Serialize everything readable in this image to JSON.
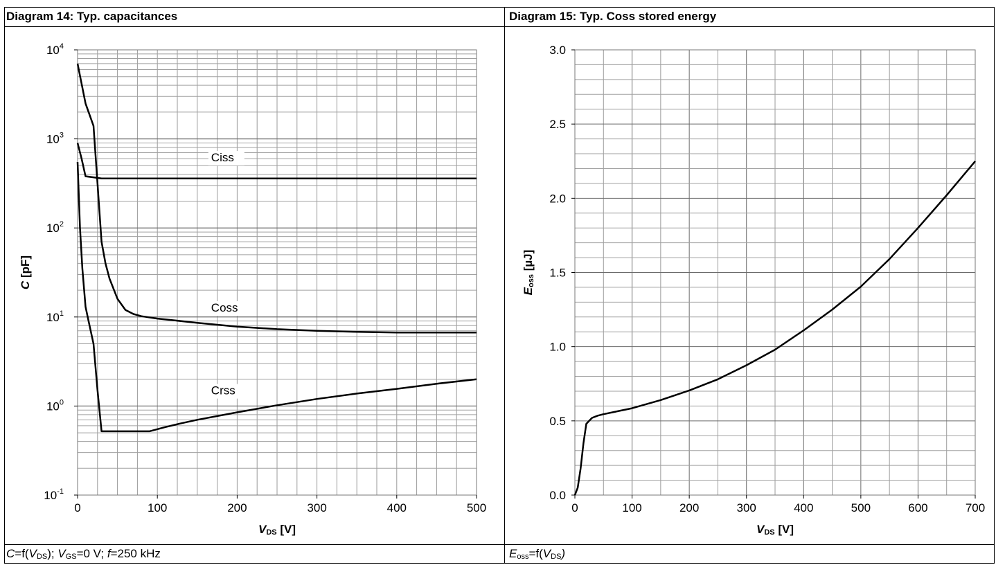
{
  "panels": [
    {
      "title": "Diagram 14: Typ. capacitances",
      "caption": {
        "v1": "C",
        "t1": "=f(",
        "v2": "V",
        "s2": "DS",
        "t2": "); ",
        "v3": "V",
        "s3": "GS",
        "t3": "=0 V; ",
        "v4": "f",
        "t4": "=250 kHz"
      }
    },
    {
      "title": "Diagram 15: Typ. Coss stored energy",
      "caption": {
        "v1": "E",
        "s1": "oss",
        "t1": "=f(",
        "v2": "V",
        "s2": "DS",
        "t2": ")"
      }
    }
  ],
  "chart_data": [
    {
      "type": "line",
      "title": "Diagram 14: Typ. capacitances",
      "xlabel": {
        "main": "V",
        "sub": "DS",
        "rest": " [V]"
      },
      "ylabel": {
        "main": "C",
        "sub": "",
        "rest": " [pF]"
      },
      "xlim": [
        0,
        500
      ],
      "ylim": [
        0.1,
        10000
      ],
      "yscale": "log",
      "grid": true,
      "xticks": [
        0,
        100,
        200,
        300,
        400,
        500
      ],
      "yticks": [
        {
          "v": 0.1,
          "base": "10",
          "exp": "-1"
        },
        {
          "v": 1,
          "base": "10",
          "exp": "0"
        },
        {
          "v": 10,
          "base": "10",
          "exp": "1"
        },
        {
          "v": 100,
          "base": "10",
          "exp": "2"
        },
        {
          "v": 1000,
          "base": "10",
          "exp": "3"
        },
        {
          "v": 10000,
          "base": "10",
          "exp": "4"
        }
      ],
      "series": [
        {
          "name": "Ciss",
          "label_at": [
            150,
            560
          ],
          "points": [
            [
              0,
              900
            ],
            [
              5,
              600
            ],
            [
              10,
              380
            ],
            [
              20,
              370
            ],
            [
              30,
              360
            ],
            [
              100,
              360
            ],
            [
              200,
              360
            ],
            [
              300,
              360
            ],
            [
              400,
              360
            ],
            [
              500,
              360
            ]
          ]
        },
        {
          "name": "Coss",
          "label_at": [
            150,
            11.5
          ],
          "points": [
            [
              0,
              7000
            ],
            [
              10,
              2500
            ],
            [
              20,
              1400
            ],
            [
              30,
              70
            ],
            [
              35,
              40
            ],
            [
              40,
              27
            ],
            [
              50,
              16
            ],
            [
              60,
              12
            ],
            [
              70,
              10.8
            ],
            [
              80,
              10.2
            ],
            [
              100,
              9.6
            ],
            [
              150,
              8.6
            ],
            [
              200,
              7.8
            ],
            [
              250,
              7.3
            ],
            [
              300,
              7.0
            ],
            [
              350,
              6.8
            ],
            [
              400,
              6.7
            ],
            [
              450,
              6.7
            ],
            [
              500,
              6.7
            ]
          ]
        },
        {
          "name": "Crss",
          "label_at": [
            150,
            1.35
          ],
          "points": [
            [
              0,
              550
            ],
            [
              3,
              100
            ],
            [
              6,
              35
            ],
            [
              10,
              13
            ],
            [
              15,
              8
            ],
            [
              20,
              5
            ],
            [
              25,
              1.5
            ],
            [
              30,
              0.52
            ],
            [
              50,
              0.52
            ],
            [
              90,
              0.52
            ],
            [
              110,
              0.58
            ],
            [
              130,
              0.64
            ],
            [
              150,
              0.7
            ],
            [
              200,
              0.85
            ],
            [
              250,
              1.02
            ],
            [
              300,
              1.2
            ],
            [
              350,
              1.38
            ],
            [
              400,
              1.56
            ],
            [
              450,
              1.78
            ],
            [
              500,
              2.0
            ]
          ]
        }
      ]
    },
    {
      "type": "line",
      "title": "Diagram 15: Typ. Coss stored energy",
      "xlabel": {
        "main": "V",
        "sub": "DS",
        "rest": " [V]"
      },
      "ylabel": {
        "main": "E",
        "sub": "oss",
        "rest": " [µJ]"
      },
      "xlim": [
        0,
        700
      ],
      "ylim": [
        0,
        3.0
      ],
      "yscale": "linear",
      "grid": true,
      "xticks": [
        0,
        100,
        200,
        300,
        400,
        500,
        600,
        700
      ],
      "yticks": [
        {
          "v": 0,
          "label": "0.0"
        },
        {
          "v": 0.5,
          "label": "0.5"
        },
        {
          "v": 1.0,
          "label": "1.0"
        },
        {
          "v": 1.5,
          "label": "1.5"
        },
        {
          "v": 2.0,
          "label": "2.0"
        },
        {
          "v": 2.5,
          "label": "2.5"
        },
        {
          "v": 3.0,
          "label": "3.0"
        }
      ],
      "series": [
        {
          "name": "",
          "points": [
            [
              0,
              0
            ],
            [
              5,
              0.05
            ],
            [
              10,
              0.18
            ],
            [
              15,
              0.35
            ],
            [
              20,
              0.48
            ],
            [
              25,
              0.5
            ],
            [
              30,
              0.52
            ],
            [
              40,
              0.535
            ],
            [
              50,
              0.545
            ],
            [
              75,
              0.565
            ],
            [
              100,
              0.585
            ],
            [
              150,
              0.64
            ],
            [
              200,
              0.705
            ],
            [
              250,
              0.78
            ],
            [
              300,
              0.875
            ],
            [
              350,
              0.98
            ],
            [
              400,
              1.11
            ],
            [
              450,
              1.25
            ],
            [
              500,
              1.405
            ],
            [
              550,
              1.59
            ],
            [
              600,
              1.8
            ],
            [
              650,
              2.02
            ],
            [
              700,
              2.25
            ]
          ]
        }
      ]
    }
  ]
}
